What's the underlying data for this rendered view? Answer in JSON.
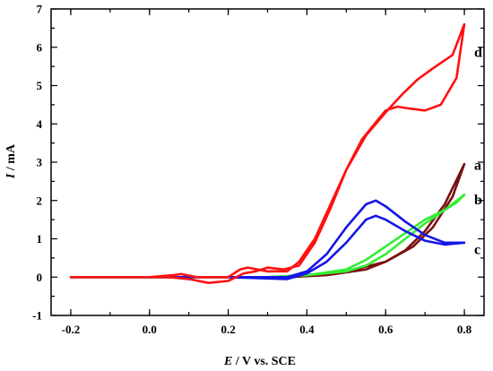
{
  "chart_data": {
    "type": "line",
    "xlabel": {
      "italic": "E",
      "rest": " / V vs. SCE"
    },
    "ylabel": {
      "italic": "I",
      "rest": " / mA"
    },
    "xlim": [
      -0.25,
      0.85
    ],
    "ylim": [
      -1,
      7
    ],
    "xticks": [
      "-0.2",
      "0.0",
      "0.2",
      "0.4",
      "0.6",
      "0.8"
    ],
    "yticks": [
      "-1",
      "0",
      "1",
      "2",
      "3",
      "4",
      "5",
      "6",
      "7"
    ],
    "grid": false,
    "legend": "curve labels at right",
    "series": [
      {
        "name": "a",
        "color": "#7a1010",
        "label_pos": [
          0.825,
          2.8
        ],
        "points": [
          [
            -0.2,
            0.0
          ],
          [
            0.2,
            0.0
          ],
          [
            0.35,
            0.0
          ],
          [
            0.45,
            0.05
          ],
          [
            0.55,
            0.2
          ],
          [
            0.6,
            0.4
          ],
          [
            0.65,
            0.7
          ],
          [
            0.7,
            1.2
          ],
          [
            0.75,
            1.9
          ],
          [
            0.8,
            2.95
          ],
          [
            0.77,
            2.1
          ],
          [
            0.72,
            1.3
          ],
          [
            0.67,
            0.8
          ],
          [
            0.6,
            0.4
          ],
          [
            0.5,
            0.15
          ],
          [
            0.4,
            0.05
          ],
          [
            0.3,
            0.0
          ],
          [
            0.1,
            0.0
          ],
          [
            -0.2,
            0.0
          ]
        ]
      },
      {
        "name": "b",
        "color": "#33ee33",
        "label_pos": [
          0.825,
          1.9
        ],
        "points": [
          [
            -0.2,
            0.0
          ],
          [
            0.3,
            0.0
          ],
          [
            0.4,
            0.05
          ],
          [
            0.5,
            0.2
          ],
          [
            0.55,
            0.45
          ],
          [
            0.6,
            0.8
          ],
          [
            0.65,
            1.15
          ],
          [
            0.7,
            1.5
          ],
          [
            0.75,
            1.75
          ],
          [
            0.8,
            2.15
          ],
          [
            0.78,
            1.95
          ],
          [
            0.75,
            1.75
          ],
          [
            0.7,
            1.4
          ],
          [
            0.65,
            1.0
          ],
          [
            0.6,
            0.6
          ],
          [
            0.55,
            0.3
          ],
          [
            0.5,
            0.15
          ],
          [
            0.4,
            0.05
          ],
          [
            0.3,
            0.0
          ],
          [
            -0.2,
            0.0
          ]
        ]
      },
      {
        "name": "c",
        "color": "#1515e6",
        "label_pos": [
          0.825,
          0.6
        ],
        "points": [
          [
            -0.2,
            0.0
          ],
          [
            0.2,
            0.0
          ],
          [
            0.35,
            -0.05
          ],
          [
            0.4,
            0.1
          ],
          [
            0.45,
            0.4
          ],
          [
            0.5,
            0.9
          ],
          [
            0.55,
            1.5
          ],
          [
            0.575,
            1.6
          ],
          [
            0.6,
            1.5
          ],
          [
            0.65,
            1.2
          ],
          [
            0.7,
            0.95
          ],
          [
            0.75,
            0.85
          ],
          [
            0.8,
            0.9
          ],
          [
            0.75,
            0.9
          ],
          [
            0.7,
            1.1
          ],
          [
            0.65,
            1.45
          ],
          [
            0.6,
            1.85
          ],
          [
            0.575,
            2.0
          ],
          [
            0.55,
            1.9
          ],
          [
            0.5,
            1.3
          ],
          [
            0.45,
            0.6
          ],
          [
            0.4,
            0.15
          ],
          [
            0.35,
            0.0
          ],
          [
            0.2,
            0.0
          ],
          [
            -0.2,
            0.0
          ]
        ]
      },
      {
        "name": "d",
        "color": "#ff1010",
        "label_pos": [
          0.825,
          5.75
        ],
        "points": [
          [
            -0.2,
            0.0
          ],
          [
            0.0,
            0.0
          ],
          [
            0.06,
            0.05
          ],
          [
            0.08,
            0.08
          ],
          [
            0.12,
            0.0
          ],
          [
            0.2,
            0.0
          ],
          [
            0.23,
            0.2
          ],
          [
            0.25,
            0.25
          ],
          [
            0.3,
            0.15
          ],
          [
            0.35,
            0.15
          ],
          [
            0.38,
            0.4
          ],
          [
            0.42,
            1.0
          ],
          [
            0.46,
            1.9
          ],
          [
            0.5,
            2.8
          ],
          [
            0.54,
            3.6
          ],
          [
            0.58,
            4.1
          ],
          [
            0.6,
            4.35
          ],
          [
            0.63,
            4.45
          ],
          [
            0.66,
            4.4
          ],
          [
            0.7,
            4.35
          ],
          [
            0.74,
            4.5
          ],
          [
            0.78,
            5.2
          ],
          [
            0.8,
            6.6
          ],
          [
            0.77,
            5.8
          ],
          [
            0.72,
            5.45
          ],
          [
            0.68,
            5.15
          ],
          [
            0.64,
            4.75
          ],
          [
            0.6,
            4.3
          ],
          [
            0.55,
            3.7
          ],
          [
            0.5,
            2.8
          ],
          [
            0.46,
            1.8
          ],
          [
            0.42,
            0.9
          ],
          [
            0.38,
            0.3
          ],
          [
            0.34,
            0.2
          ],
          [
            0.3,
            0.25
          ],
          [
            0.27,
            0.15
          ],
          [
            0.24,
            0.1
          ],
          [
            0.2,
            -0.1
          ],
          [
            0.15,
            -0.15
          ],
          [
            0.1,
            -0.05
          ],
          [
            0.05,
            0.0
          ],
          [
            -0.2,
            0.0
          ]
        ]
      }
    ]
  }
}
